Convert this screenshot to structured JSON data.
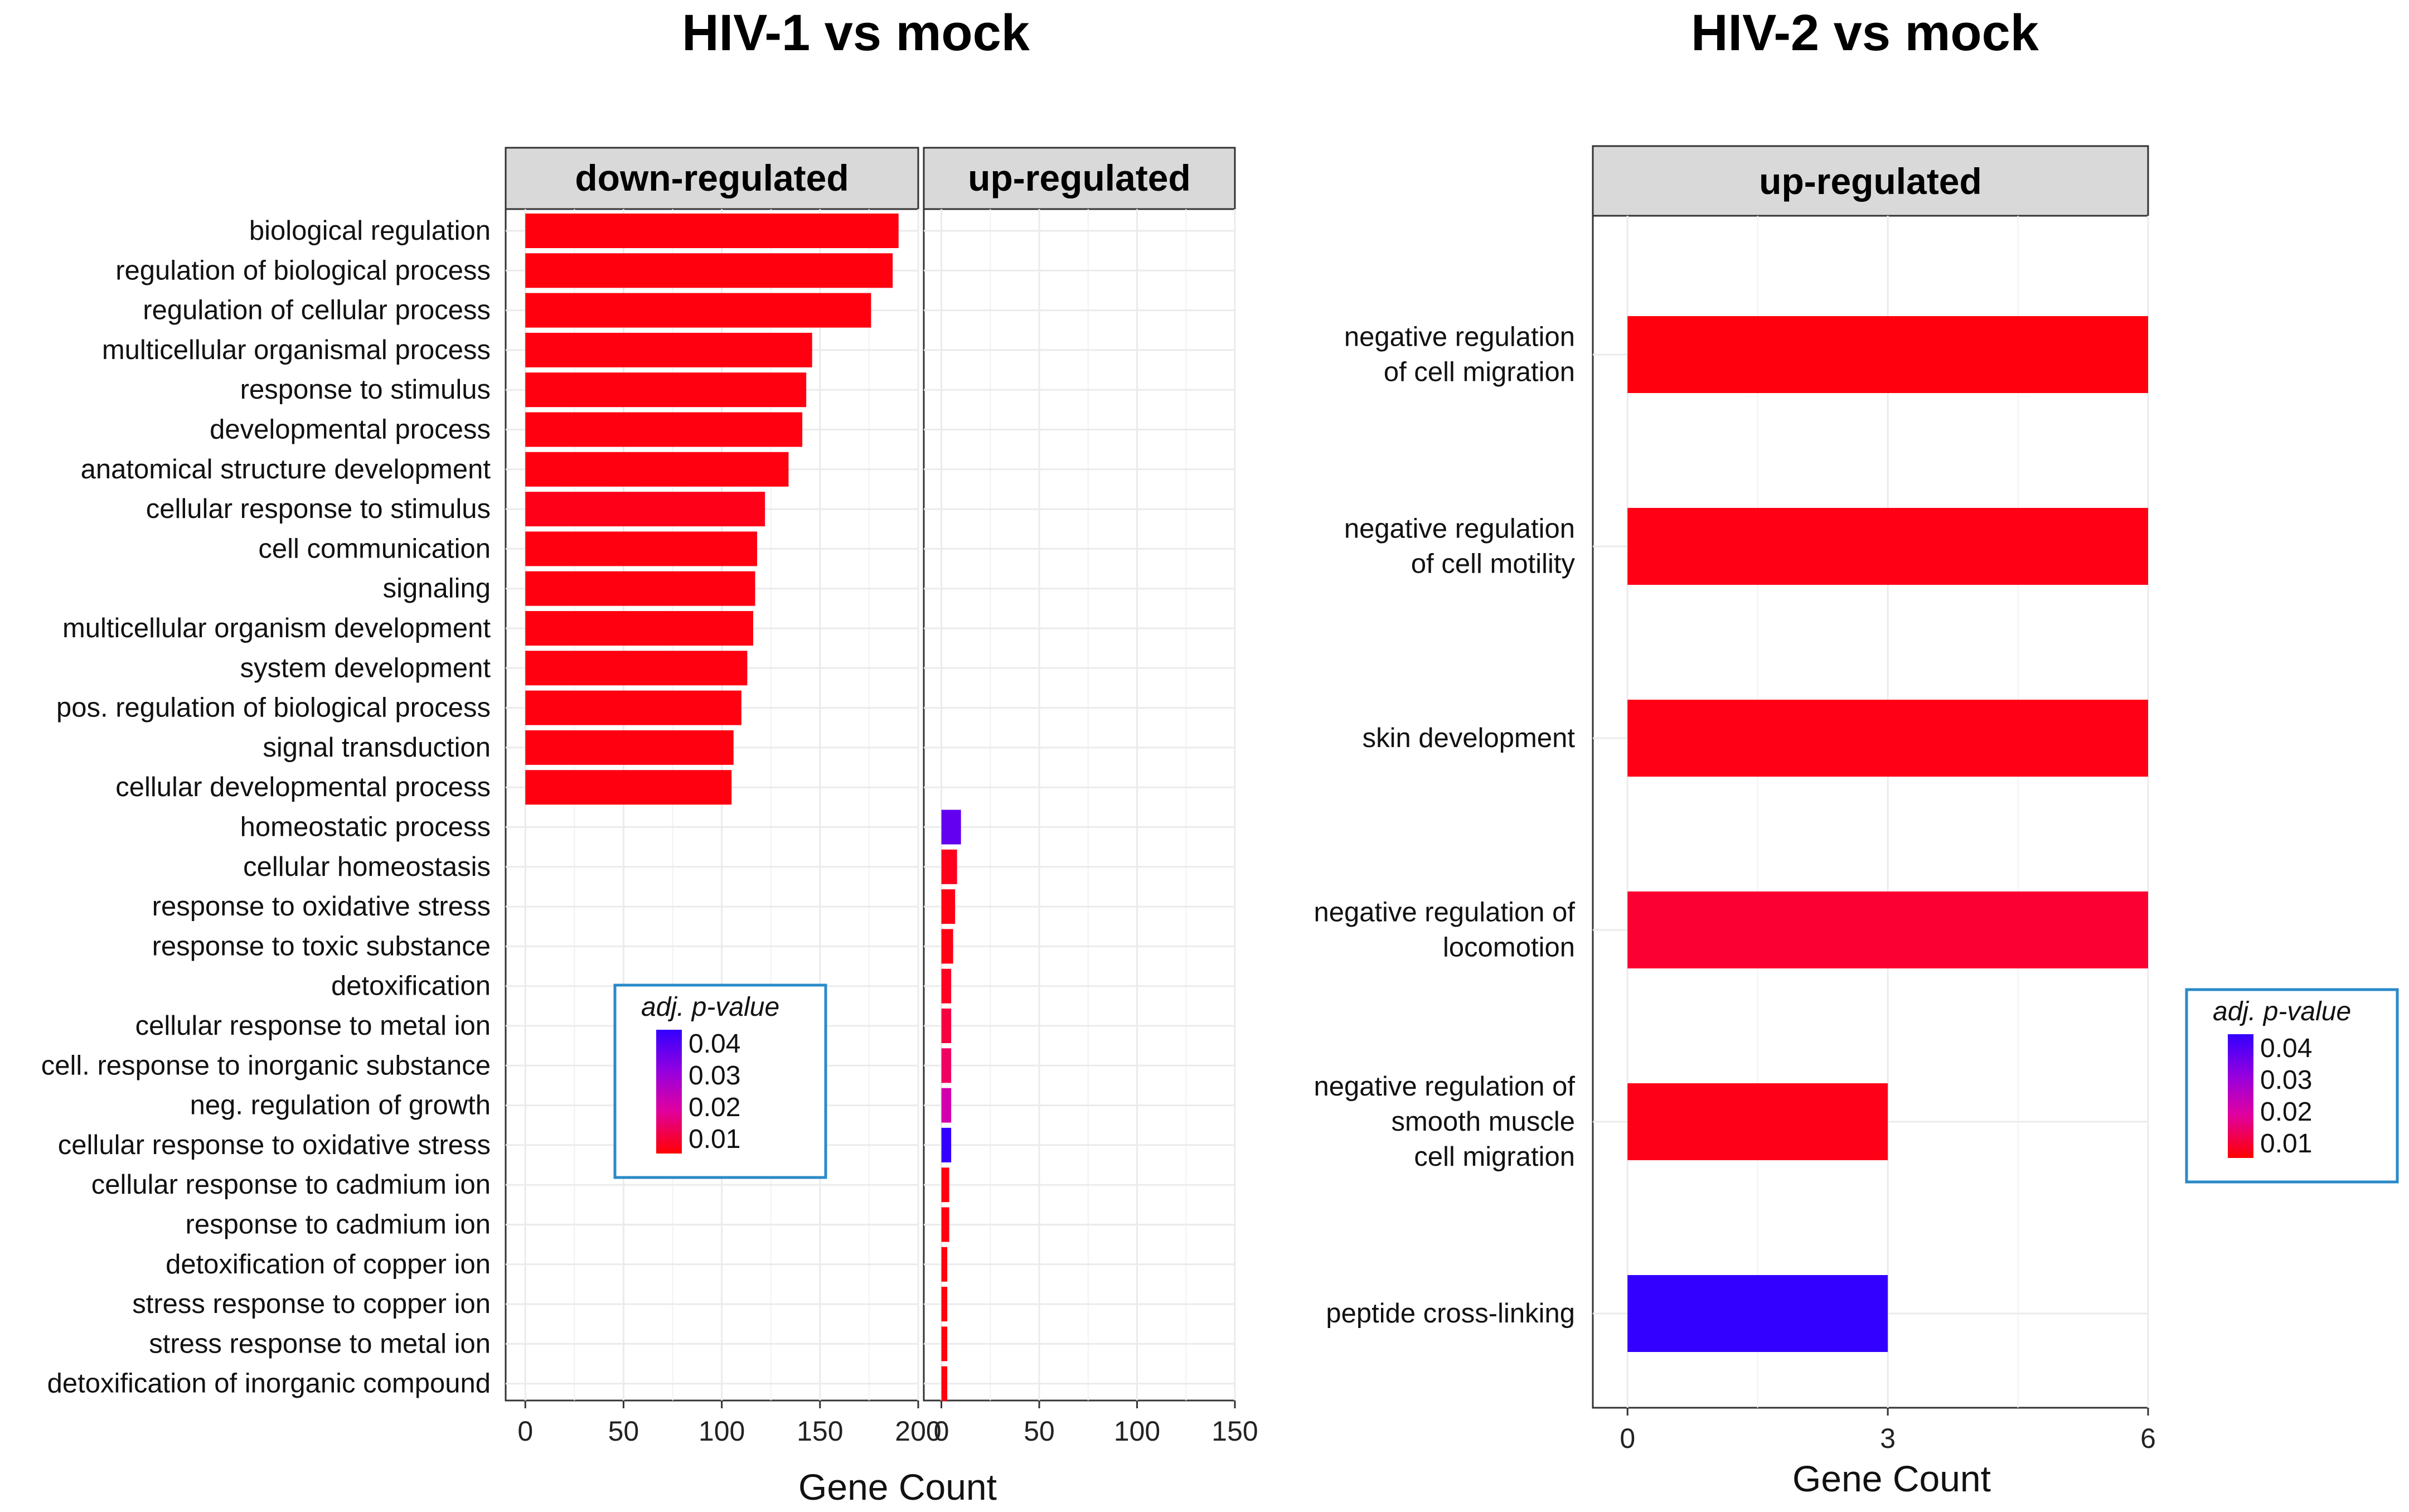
{
  "colors": {
    "low": "#ff0000",
    "mid": "#d000a0",
    "high": "#3300ff",
    "strip": "#d9d9d9",
    "grid": "#ebebeb",
    "legend_border": "#2a8ac8"
  },
  "chart_data": [
    {
      "type": "bar",
      "title": "HIV-1 vs mock",
      "xlabel": "Gene Count",
      "ylabel": "",
      "legend": {
        "title": "adj. p-value",
        "labels": [
          "0.04",
          "0.03",
          "0.02",
          "0.01"
        ],
        "placement": "inside-bottom-left"
      },
      "categories": [
        "biological regulation",
        "regulation of biological process",
        "regulation of cellular process",
        "multicellular organismal process",
        "response to stimulus",
        "developmental process",
        "anatomical structure development",
        "cellular response to stimulus",
        "cell communication",
        "signaling",
        "multicellular organism development",
        "system development",
        "pos. regulation of biological process",
        "signal transduction",
        "cellular developmental process",
        "homeostatic process",
        "cellular homeostasis",
        "response to oxidative stress",
        "response to toxic substance",
        "detoxification",
        "cellular response to metal ion",
        "cell. response to inorganic substance",
        "neg. regulation of growth",
        "cellular response to oxidative stress",
        "cellular response to cadmium ion",
        "response to cadmium ion",
        "detoxification of copper ion",
        "stress response to copper ion",
        "stress response to metal ion",
        "detoxification of inorganic compound"
      ],
      "panels": [
        {
          "strip": "down-regulated",
          "xlim": [
            -10,
            200
          ],
          "xticks": [
            0,
            50,
            100,
            150,
            200
          ],
          "values": [
            190,
            187,
            176,
            146,
            143,
            141,
            134,
            122,
            118,
            117,
            116,
            113,
            110,
            106,
            105,
            null,
            null,
            null,
            null,
            null,
            null,
            null,
            null,
            null,
            null,
            null,
            null,
            null,
            null,
            null
          ],
          "padj": [
            0.005,
            0.005,
            0.005,
            0.006,
            0.006,
            0.006,
            0.006,
            0.009,
            0.006,
            0.006,
            0.006,
            0.006,
            0.006,
            0.006,
            0.006,
            null,
            null,
            null,
            null,
            null,
            null,
            null,
            null,
            null,
            null,
            null,
            null,
            null,
            null,
            null
          ]
        },
        {
          "strip": "up-regulated",
          "xlim": [
            -9,
            150
          ],
          "xticks": [
            0,
            50,
            100,
            150
          ],
          "values": [
            null,
            null,
            null,
            null,
            null,
            null,
            null,
            null,
            null,
            null,
            null,
            null,
            null,
            null,
            null,
            10,
            8,
            7,
            6,
            5,
            5,
            5,
            5,
            5,
            4,
            4,
            3,
            3,
            3,
            3
          ],
          "padj": [
            null,
            null,
            null,
            null,
            null,
            null,
            null,
            null,
            null,
            null,
            null,
            null,
            null,
            null,
            null,
            0.038,
            0.01,
            0.007,
            0.007,
            0.012,
            0.014,
            0.016,
            0.022,
            0.045,
            0.006,
            0.006,
            0.005,
            0.005,
            0.005,
            0.005
          ]
        }
      ]
    },
    {
      "type": "bar",
      "title": "HIV-2 vs mock",
      "xlabel": "Gene Count",
      "ylabel": "",
      "legend": {
        "title": "adj. p-value",
        "labels": [
          "0.04",
          "0.03",
          "0.02",
          "0.01"
        ],
        "placement": "right"
      },
      "categories": [
        "negative regulation\nof cell migration",
        "negative regulation\nof cell motility",
        "skin development",
        "negative regulation of\nlocomotion",
        "negative regulation of\nsmooth muscle\ncell migration",
        "peptide cross-linking"
      ],
      "panels": [
        {
          "strip": "up-regulated",
          "xlim": [
            -0.4,
            6
          ],
          "xticks": [
            0,
            3,
            6
          ],
          "values": [
            6,
            6,
            6,
            6,
            3,
            3
          ],
          "padj": [
            0.005,
            0.007,
            0.008,
            0.013,
            0.009,
            0.045
          ]
        }
      ]
    }
  ]
}
